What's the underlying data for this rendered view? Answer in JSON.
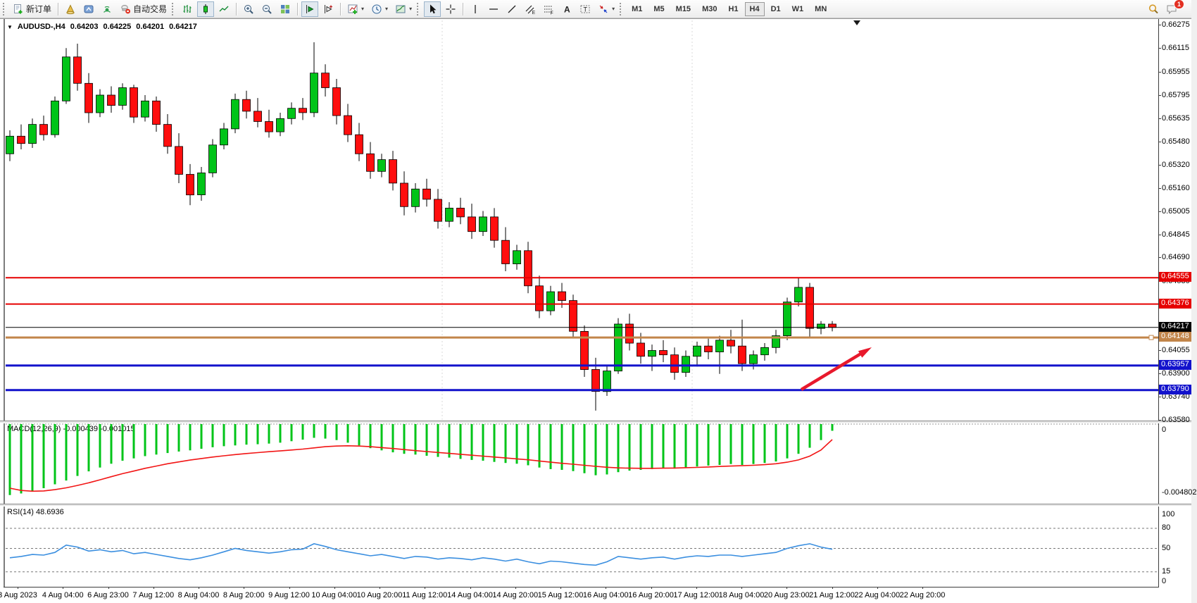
{
  "toolbar": {
    "new_order_label": "新订单",
    "autotrading_label": "自动交易",
    "timeframes": [
      "M1",
      "M5",
      "M15",
      "M30",
      "H1",
      "H4",
      "D1",
      "W1",
      "MN"
    ],
    "active_timeframe": "H4",
    "notification_badge": "1"
  },
  "chart_header": {
    "symbol": "AUDUSD-,H4",
    "open": "0.64203",
    "high": "0.64225",
    "low": "0.64201",
    "close": "0.64217"
  },
  "price_axis": {
    "ticks": [
      "0.66275",
      "0.66115",
      "0.65955",
      "0.65795",
      "0.65635",
      "0.65480",
      "0.65320",
      "0.65160",
      "0.65005",
      "0.64845",
      "0.64690",
      "0.64530",
      "0.64055",
      "0.63900",
      "0.63740",
      "0.63580"
    ],
    "level_labels": [
      {
        "text": "0.64555",
        "color": "#e60000"
      },
      {
        "text": "0.64376",
        "color": "#e60000"
      },
      {
        "text": "0.64217",
        "color": "#000000"
      },
      {
        "text": "0.64148",
        "color": "#c2854a"
      },
      {
        "text": "0.63957",
        "color": "#1212cc"
      },
      {
        "text": "0.63790",
        "color": "#1212cc"
      }
    ]
  },
  "time_axis": {
    "labels": [
      "3 Aug 2023",
      "4 Aug 04:00",
      "6 Aug 23:00",
      "7 Aug 12:00",
      "8 Aug 04:00",
      "8 Aug 20:00",
      "9 Aug 12:00",
      "10 Aug 04:00",
      "10 Aug 20:00",
      "11 Aug 12:00",
      "14 Aug 04:00",
      "14 Aug 20:00",
      "15 Aug 12:00",
      "16 Aug 04:00",
      "16 Aug 20:00",
      "17 Aug 12:00",
      "18 Aug 04:00",
      "20 Aug 23:00",
      "21 Aug 12:00",
      "22 Aug 04:00",
      "22 Aug 20:00"
    ]
  },
  "indicators": {
    "macd": {
      "label": "MACD(12,26,9) -0.000439 -0.001015",
      "axis": [
        "0",
        "-0.004802"
      ]
    },
    "rsi": {
      "label": "RSI(14) 48.6936",
      "axis": [
        100,
        80,
        50,
        15,
        0
      ],
      "dashed_levels": [
        80,
        50,
        15
      ]
    }
  },
  "chart_data": {
    "type": "candlestick",
    "title": "AUDUSD-,H4",
    "symbol": "AUDUSD",
    "timeframe": "H4",
    "y_range": [
      0.63582,
      0.66291
    ],
    "current_ohlc": {
      "open": 0.64203,
      "high": 0.64225,
      "low": 0.64201,
      "close": 0.64217
    },
    "up_color": "#00c418",
    "down_color": "#ff0e0e",
    "candles": [
      [
        0.654,
        0.6556,
        0.6535,
        0.6552
      ],
      [
        0.6552,
        0.656,
        0.6543,
        0.6547
      ],
      [
        0.6547,
        0.6564,
        0.6544,
        0.656
      ],
      [
        0.656,
        0.6566,
        0.6549,
        0.6553
      ],
      [
        0.6553,
        0.6579,
        0.6551,
        0.6576
      ],
      [
        0.6576,
        0.6612,
        0.6574,
        0.6606
      ],
      [
        0.6606,
        0.6615,
        0.6583,
        0.6588
      ],
      [
        0.6588,
        0.6595,
        0.6561,
        0.6568
      ],
      [
        0.6568,
        0.6584,
        0.6565,
        0.658
      ],
      [
        0.658,
        0.6586,
        0.6568,
        0.6573
      ],
      [
        0.6573,
        0.6588,
        0.657,
        0.6585
      ],
      [
        0.6585,
        0.6587,
        0.6561,
        0.6565
      ],
      [
        0.6565,
        0.658,
        0.6562,
        0.6576
      ],
      [
        0.6576,
        0.6579,
        0.6555,
        0.656
      ],
      [
        0.656,
        0.6567,
        0.654,
        0.6545
      ],
      [
        0.6545,
        0.6554,
        0.652,
        0.6526
      ],
      [
        0.6526,
        0.6533,
        0.6505,
        0.6512
      ],
      [
        0.6512,
        0.6531,
        0.6508,
        0.6527
      ],
      [
        0.6527,
        0.655,
        0.6524,
        0.6546
      ],
      [
        0.6546,
        0.6561,
        0.6543,
        0.6557
      ],
      [
        0.6557,
        0.6581,
        0.6554,
        0.6577
      ],
      [
        0.6577,
        0.6583,
        0.6564,
        0.6569
      ],
      [
        0.6569,
        0.6578,
        0.6558,
        0.6562
      ],
      [
        0.6562,
        0.657,
        0.6551,
        0.6555
      ],
      [
        0.6555,
        0.6568,
        0.6552,
        0.6564
      ],
      [
        0.6564,
        0.6575,
        0.656,
        0.6571
      ],
      [
        0.6571,
        0.6578,
        0.6563,
        0.6568
      ],
      [
        0.6568,
        0.6616,
        0.6565,
        0.6595
      ],
      [
        0.6595,
        0.6601,
        0.6579,
        0.6585
      ],
      [
        0.6585,
        0.6591,
        0.656,
        0.6566
      ],
      [
        0.6566,
        0.6574,
        0.6548,
        0.6553
      ],
      [
        0.6553,
        0.6561,
        0.6535,
        0.654
      ],
      [
        0.654,
        0.6548,
        0.6523,
        0.6528
      ],
      [
        0.6528,
        0.654,
        0.6524,
        0.6536
      ],
      [
        0.6536,
        0.6542,
        0.6515,
        0.652
      ],
      [
        0.652,
        0.6528,
        0.6498,
        0.6504
      ],
      [
        0.6504,
        0.652,
        0.65,
        0.6516
      ],
      [
        0.6516,
        0.6523,
        0.6504,
        0.6509
      ],
      [
        0.6509,
        0.6516,
        0.6489,
        0.6494
      ],
      [
        0.6494,
        0.6507,
        0.649,
        0.6503
      ],
      [
        0.6503,
        0.651,
        0.6492,
        0.6497
      ],
      [
        0.6497,
        0.6506,
        0.6482,
        0.6487
      ],
      [
        0.6487,
        0.6501,
        0.6484,
        0.6497
      ],
      [
        0.6497,
        0.6503,
        0.6476,
        0.6481
      ],
      [
        0.6481,
        0.649,
        0.646,
        0.6465
      ],
      [
        0.6465,
        0.6478,
        0.6461,
        0.6474
      ],
      [
        0.6474,
        0.648,
        0.6445,
        0.645
      ],
      [
        0.645,
        0.6457,
        0.6428,
        0.6433
      ],
      [
        0.6433,
        0.645,
        0.643,
        0.6446
      ],
      [
        0.6446,
        0.6452,
        0.6435,
        0.644
      ],
      [
        0.644,
        0.6444,
        0.6415,
        0.6419
      ],
      [
        0.6419,
        0.6423,
        0.6388,
        0.6393
      ],
      [
        0.6393,
        0.6401,
        0.6365,
        0.6378
      ],
      [
        0.6378,
        0.6396,
        0.6375,
        0.6392
      ],
      [
        0.6392,
        0.6428,
        0.639,
        0.6424
      ],
      [
        0.6424,
        0.6431,
        0.6406,
        0.6411
      ],
      [
        0.6411,
        0.6418,
        0.6397,
        0.6402
      ],
      [
        0.6402,
        0.641,
        0.6392,
        0.6406
      ],
      [
        0.6406,
        0.6413,
        0.6398,
        0.6403
      ],
      [
        0.6403,
        0.6408,
        0.6386,
        0.6391
      ],
      [
        0.6391,
        0.6406,
        0.6388,
        0.6402
      ],
      [
        0.6402,
        0.6412,
        0.6395,
        0.6409
      ],
      [
        0.6409,
        0.6414,
        0.64,
        0.6405
      ],
      [
        0.6405,
        0.6416,
        0.639,
        0.6413
      ],
      [
        0.6413,
        0.642,
        0.6404,
        0.6409
      ],
      [
        0.6409,
        0.6427,
        0.6392,
        0.6397
      ],
      [
        0.6397,
        0.6406,
        0.6393,
        0.6403
      ],
      [
        0.6403,
        0.6411,
        0.6399,
        0.6408
      ],
      [
        0.6408,
        0.642,
        0.6404,
        0.6416
      ],
      [
        0.6416,
        0.6442,
        0.6413,
        0.6439
      ],
      [
        0.6439,
        0.64555,
        0.6436,
        0.6449
      ],
      [
        0.6449,
        0.6452,
        0.6415,
        0.6421
      ],
      [
        0.6421,
        0.6426,
        0.6417,
        0.6424
      ],
      [
        0.6424,
        0.6426,
        0.6419,
        0.64217
      ]
    ],
    "levels": [
      {
        "price": 0.64555,
        "color": "#e60000",
        "width": 2
      },
      {
        "price": 0.64376,
        "color": "#e60000",
        "width": 2
      },
      {
        "price": 0.64217,
        "color": "#000000",
        "width": 1
      },
      {
        "price": 0.64148,
        "color": "#c2854a",
        "width": 3
      },
      {
        "price": 0.63957,
        "color": "#1212cc",
        "width": 3
      },
      {
        "price": 0.6379,
        "color": "#1212cc",
        "width": 3
      }
    ],
    "macd": {
      "range": [
        -0.004802,
        0
      ],
      "histogram": [
        -0.00465,
        -0.00455,
        -0.0044,
        -0.0042,
        -0.00395,
        -0.0037,
        -0.0034,
        -0.0031,
        -0.00285,
        -0.0026,
        -0.0024,
        -0.00225,
        -0.0021,
        -0.002,
        -0.0019,
        -0.0018,
        -0.00172,
        -0.00162,
        -0.00152,
        -0.00145,
        -0.0014,
        -0.00135,
        -0.00132,
        -0.00128,
        -0.00122,
        -0.00112,
        -0.00102,
        -0.0009,
        -0.00095,
        -0.00105,
        -0.00122,
        -0.0014,
        -0.00158,
        -0.00172,
        -0.00185,
        -0.00195,
        -0.002,
        -0.00208,
        -0.00215,
        -0.0022,
        -0.00228,
        -0.00235,
        -0.0024,
        -0.00248,
        -0.00255,
        -0.0026,
        -0.0027,
        -0.00285,
        -0.00295,
        -0.003,
        -0.00308,
        -0.00322,
        -0.00335,
        -0.0033,
        -0.00315,
        -0.00305,
        -0.003,
        -0.00295,
        -0.00288,
        -0.00292,
        -0.00285,
        -0.00278,
        -0.00272,
        -0.00268,
        -0.00262,
        -0.00268,
        -0.00262,
        -0.00255,
        -0.00245,
        -0.00225,
        -0.00195,
        -0.00155,
        -0.00105,
        -0.000439
      ],
      "signal": [
        -0.0042,
        -0.00435,
        -0.0044,
        -0.00438,
        -0.0043,
        -0.00418,
        -0.00402,
        -0.00385,
        -0.00365,
        -0.00345,
        -0.00325,
        -0.00308,
        -0.0029,
        -0.00275,
        -0.0026,
        -0.00248,
        -0.00236,
        -0.00226,
        -0.00216,
        -0.00208,
        -0.002,
        -0.00193,
        -0.00187,
        -0.00181,
        -0.00176,
        -0.0017,
        -0.00164,
        -0.00156,
        -0.00148,
        -0.00144,
        -0.00142,
        -0.00144,
        -0.00148,
        -0.00154,
        -0.0016,
        -0.00167,
        -0.00174,
        -0.0018,
        -0.00186,
        -0.00192,
        -0.00198,
        -0.00204,
        -0.0021,
        -0.00216,
        -0.00222,
        -0.00228,
        -0.00234,
        -0.00242,
        -0.0025,
        -0.00257,
        -0.00263,
        -0.0027,
        -0.00277,
        -0.00283,
        -0.00287,
        -0.00289,
        -0.0029,
        -0.0029,
        -0.00289,
        -0.00288,
        -0.00286,
        -0.00284,
        -0.00281,
        -0.00278,
        -0.00275,
        -0.00273,
        -0.0027,
        -0.00266,
        -0.0026,
        -0.0025,
        -0.00235,
        -0.0021,
        -0.0017,
        -0.001015
      ]
    },
    "rsi": {
      "range": [
        0,
        100
      ],
      "values": [
        36,
        38,
        41,
        40,
        44,
        55,
        52,
        46,
        48,
        45,
        47,
        42,
        44,
        41,
        38,
        35,
        33,
        36,
        40,
        45,
        50,
        47,
        45,
        43,
        45,
        48,
        49,
        57,
        53,
        48,
        45,
        42,
        39,
        41,
        38,
        35,
        38,
        37,
        34,
        36,
        35,
        33,
        36,
        34,
        31,
        34,
        30,
        27,
        31,
        30,
        28,
        26,
        25,
        30,
        38,
        36,
        34,
        36,
        37,
        34,
        37,
        39,
        38,
        40,
        40,
        38,
        40,
        42,
        44,
        50,
        54,
        57,
        52,
        48.7
      ]
    },
    "annotations": [
      {
        "type": "arrow",
        "x1": 1130,
        "y1": 524,
        "x2": 1230,
        "y2": 464,
        "color": "#e8192c"
      }
    ]
  }
}
